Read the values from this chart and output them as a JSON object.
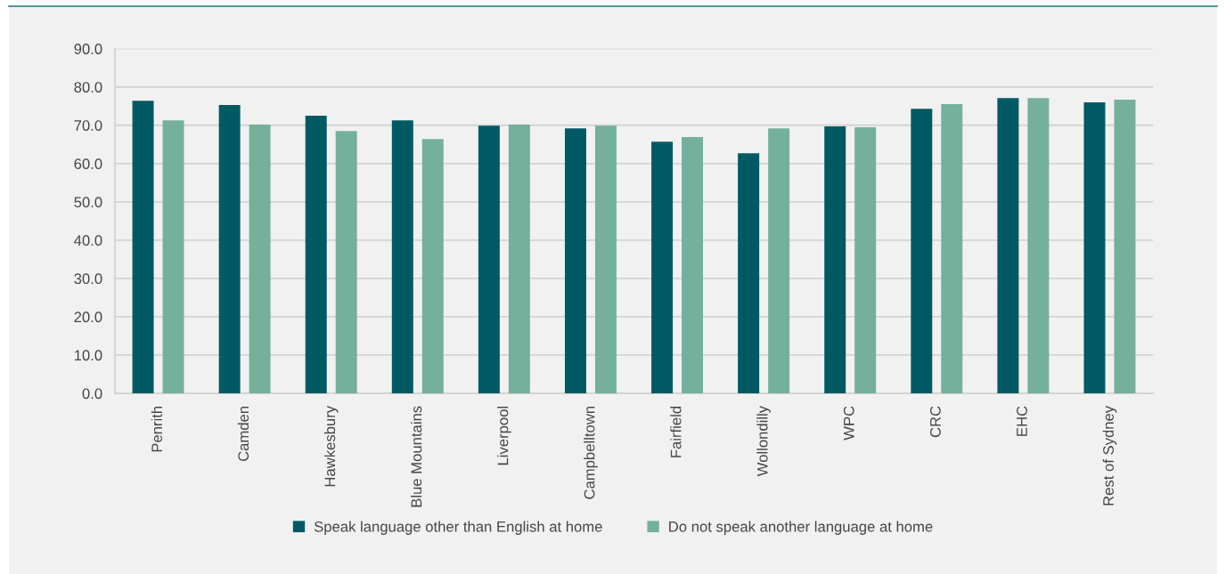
{
  "chart_data": {
    "type": "bar",
    "categories": [
      "Penrith",
      "Camden",
      "Hawkesbury",
      "Blue Mountains",
      "Liverpool",
      "Campbelltown",
      "Fairfield",
      "Wollondilly",
      "WPC",
      "CRC",
      "EHC",
      "Rest of Sydney"
    ],
    "series": [
      {
        "name": "Speak language other than English at home",
        "color": "#005a64",
        "values": [
          76.4,
          75.3,
          72.5,
          71.3,
          69.9,
          69.2,
          65.7,
          62.7,
          69.7,
          74.3,
          77.1,
          76.0
        ]
      },
      {
        "name": "Do not speak another language at home",
        "color": "#74b09c",
        "values": [
          71.3,
          70.2,
          68.5,
          66.4,
          70.2,
          69.9,
          66.9,
          69.2,
          69.5,
          75.5,
          77.1,
          76.7
        ]
      }
    ],
    "ylim": [
      0,
      90
    ],
    "yticks": [
      {
        "value": 0,
        "label": "0.0"
      },
      {
        "value": 10,
        "label": "10.0"
      },
      {
        "value": 20,
        "label": "20.0"
      },
      {
        "value": 30,
        "label": "30.0"
      },
      {
        "value": 40,
        "label": "40.0"
      },
      {
        "value": 50,
        "label": "50.0"
      },
      {
        "value": 60,
        "label": "60.0"
      },
      {
        "value": 70,
        "label": "70.0"
      },
      {
        "value": 80,
        "label": "80.0"
      },
      {
        "value": 90,
        "label": "90.0"
      }
    ],
    "grid": "y",
    "legend": "bottom"
  }
}
